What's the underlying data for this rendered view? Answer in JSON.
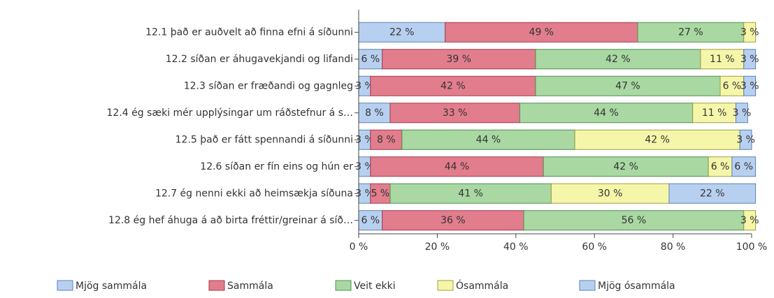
{
  "chart_data": {
    "type": "stacked-barh",
    "categories": [
      "12.1 það er auðvelt að finna efni á síðunni",
      "12.2 síðan er áhugavekjandi og lifandi",
      "12.3 síðan er fræðandi og gagnleg",
      "12.4 ég sæki mér upplýsingar um ráðstefnur á s…",
      "12.5 það er fátt spennandi á síðunni",
      "12.6 síðan er fín eins og hún er",
      "12.7 ég nenni ekki að heimsækja síðuna",
      "12.8 ég hef áhuga á að birta fréttir/greinar á síð…"
    ],
    "series": [
      {
        "name": "Mjög sammála",
        "color": "#b8d0f0",
        "stroke": "#5b80b4",
        "values": [
          22,
          6,
          3,
          8,
          3,
          3,
          3,
          6
        ],
        "value_labels": [
          "22 %",
          "6 %",
          "3 %",
          "8 %",
          "3 %",
          "3 %",
          "3 %",
          "6 %"
        ]
      },
      {
        "name": "Sammála",
        "color": "#e27d8d",
        "stroke": "#a33a4c",
        "values": [
          49,
          39,
          42,
          33,
          8,
          44,
          5,
          36
        ],
        "value_labels": [
          "49 %",
          "39 %",
          "42 %",
          "33 %",
          "8 %",
          "44 %",
          "5 %",
          "36 %"
        ]
      },
      {
        "name": "Veit ekki",
        "color": "#a9d8a2",
        "stroke": "#4f8f4f",
        "values": [
          27,
          42,
          47,
          44,
          44,
          42,
          41,
          56
        ],
        "value_labels": [
          "27 %",
          "42 %",
          "47 %",
          "44 %",
          "44 %",
          "42 %",
          "41 %",
          "56 %"
        ]
      },
      {
        "name": "Ósammála",
        "color": "#f6f6aa",
        "stroke": "#9e9e40",
        "values": [
          3,
          11,
          6,
          11,
          42,
          6,
          30,
          3
        ],
        "value_labels": [
          "3 %",
          "11 %",
          "6 %",
          "11 %",
          "42 %",
          "6 %",
          "30 %",
          "3 %"
        ]
      },
      {
        "name": "Mjög ósammála",
        "color": "#b8d0f0",
        "stroke": "#5b80b4",
        "values": [
          0,
          3,
          3,
          3,
          3,
          6,
          22,
          0
        ],
        "value_labels": [
          null,
          "3 %",
          "3 %",
          "3 %",
          "3 %",
          "6 %",
          "22 %",
          null
        ]
      }
    ],
    "xlim": [
      0,
      100
    ],
    "xticks": [
      {
        "value": 0,
        "label": "0 %"
      },
      {
        "value": 20,
        "label": "20 %"
      },
      {
        "value": 40,
        "label": "40 %"
      },
      {
        "value": 60,
        "label": "60 %"
      },
      {
        "value": 80,
        "label": "80 %"
      },
      {
        "value": 100,
        "label": "100 %"
      }
    ],
    "legend": "bottom"
  }
}
